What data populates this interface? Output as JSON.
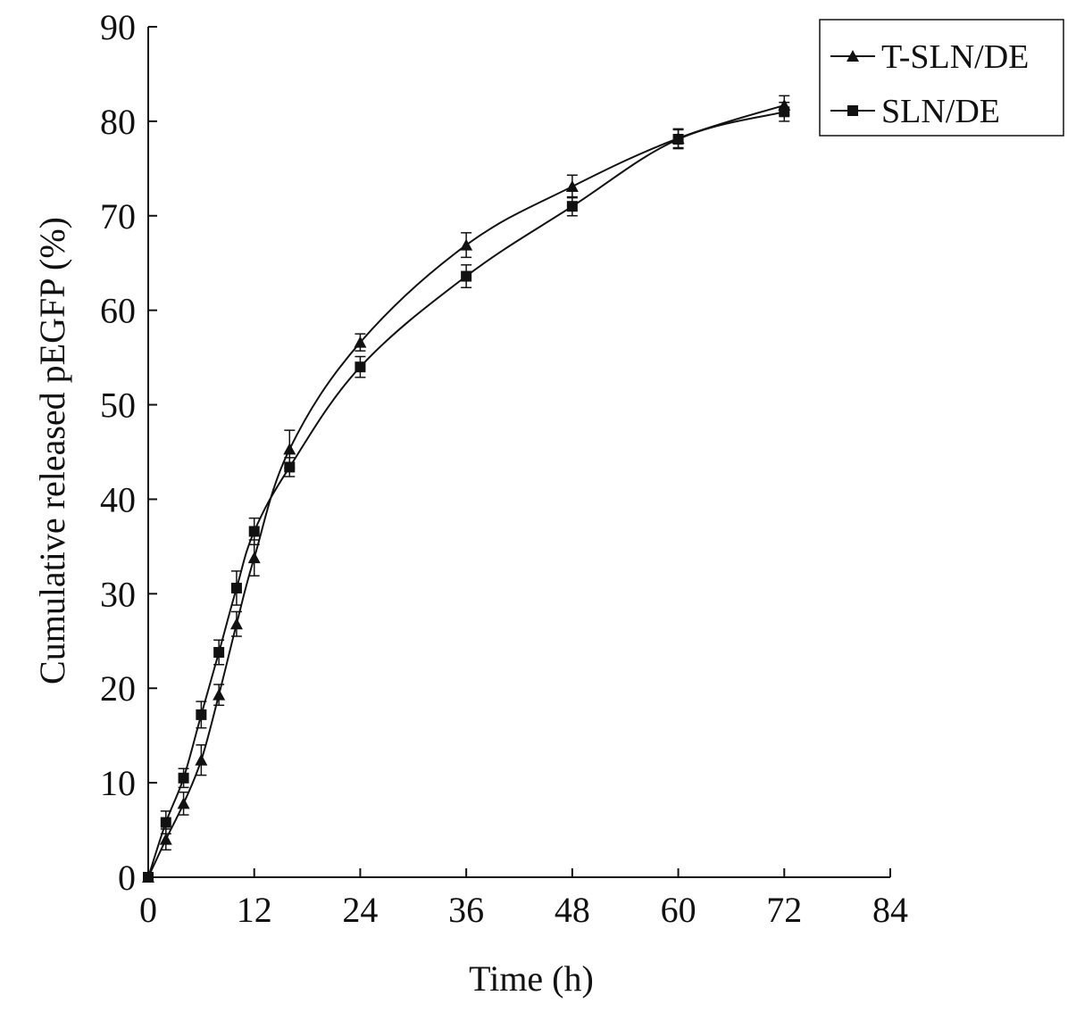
{
  "chart_data": {
    "type": "line",
    "title": "",
    "xlabel": "Time (h)",
    "ylabel": "Cumulative released pEGFP  (%)",
    "xlim": [
      0,
      84
    ],
    "ylim": [
      0,
      90
    ],
    "xticks": [
      "0",
      "12",
      "24",
      "36",
      "48",
      "60",
      "72",
      "84"
    ],
    "yticks": [
      "0",
      "10",
      "20",
      "30",
      "40",
      "50",
      "60",
      "70",
      "80",
      "90"
    ],
    "grid": false,
    "legend_position": "top-right",
    "series": [
      {
        "name": "T-SLN/DE",
        "marker": "triangle",
        "x": [
          0,
          2,
          4,
          6,
          8,
          10,
          12,
          16,
          24,
          36,
          48,
          60,
          72
        ],
        "y": [
          0,
          4,
          7.8,
          12.4,
          19.3,
          26.8,
          33.8,
          45.3,
          56.6,
          66.9,
          73.1,
          78.2,
          81.7
        ],
        "err": [
          0,
          1.1,
          1.2,
          1.6,
          1.1,
          1.3,
          1.9,
          2.0,
          0.9,
          1.3,
          1.2,
          1.0,
          1.0
        ]
      },
      {
        "name": "SLN/DE",
        "marker": "square",
        "x": [
          0,
          2,
          4,
          6,
          8,
          10,
          12,
          16,
          24,
          36,
          48,
          60,
          72
        ],
        "y": [
          0,
          5.8,
          10.5,
          17.2,
          23.8,
          30.6,
          36.6,
          43.4,
          54.0,
          63.6,
          71.0,
          78.1,
          81.0
        ],
        "err": [
          0,
          1.2,
          1.0,
          1.4,
          1.3,
          1.8,
          1.4,
          1.0,
          1.1,
          1.2,
          1.0,
          1.0,
          1.0
        ]
      }
    ]
  }
}
